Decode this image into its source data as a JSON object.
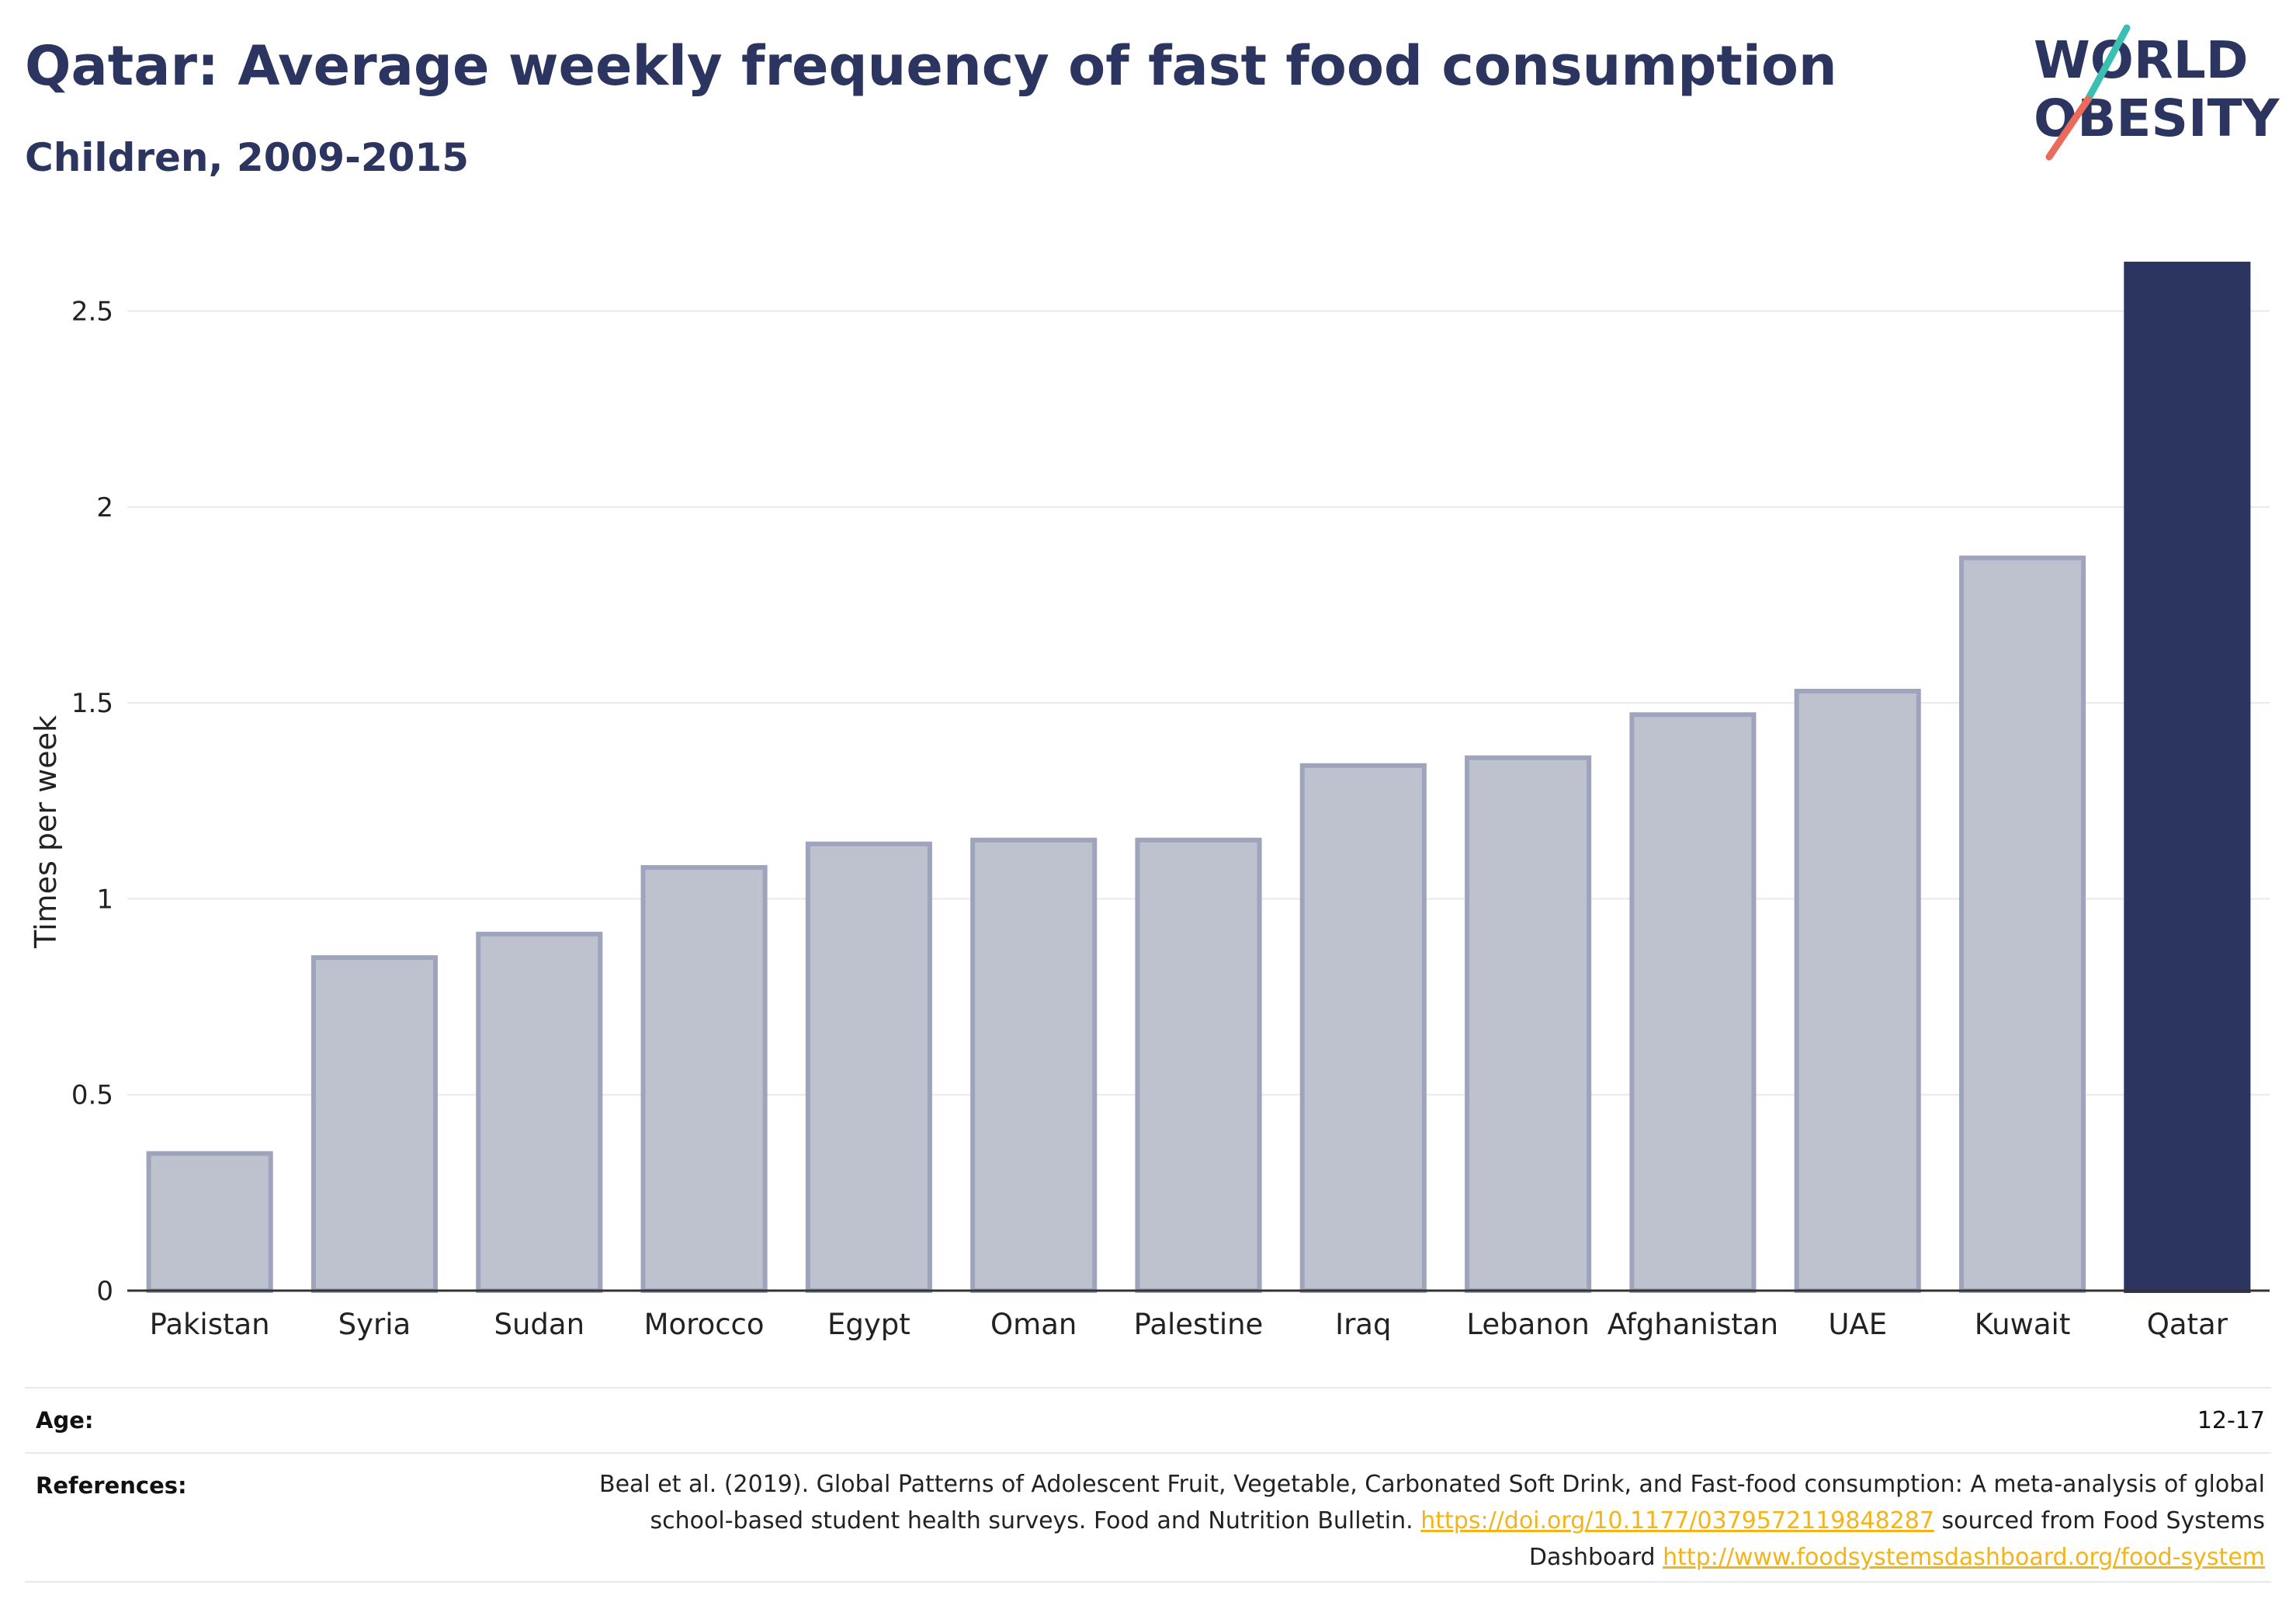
{
  "header": {
    "title": "Qatar: Average weekly frequency of fast food consumption",
    "subtitle": "Children, 2009-2015"
  },
  "logo": {
    "line1": "WORLD",
    "line2": "OBESITY"
  },
  "colors": {
    "title": "#2b3560",
    "highlight_bar": "#2b3560",
    "muted_bar": "#bec2ce",
    "muted_bar_border": "#9ea4bb",
    "link": "#f2b418",
    "logo_teal": "#3bbfb2",
    "logo_coral": "#ea6a5b"
  },
  "chart_data": {
    "type": "bar",
    "categories": [
      "Pakistan",
      "Syria",
      "Sudan",
      "Morocco",
      "Egypt",
      "Oman",
      "Palestine",
      "Iraq",
      "Lebanon",
      "Afghanistan",
      "UAE",
      "Kuwait",
      "Qatar"
    ],
    "values": [
      0.35,
      0.85,
      0.91,
      1.08,
      1.14,
      1.15,
      1.15,
      1.34,
      1.36,
      1.47,
      1.53,
      1.87,
      2.62
    ],
    "highlight": "Qatar",
    "ylabel": "Times per week",
    "xlabel": "",
    "ylim": [
      0,
      2.62
    ],
    "yticks": [
      0,
      0.5,
      1,
      1.5,
      2,
      2.5
    ],
    "ytick_labels": [
      "0",
      "0.5",
      "1",
      "1.5",
      "2",
      "2.5"
    ],
    "grid": true
  },
  "footer": {
    "age_label": "Age:",
    "age_value": "12-17",
    "references_label": "References:",
    "ref_text_1": "Beal et al. (2019). Global Patterns of Adolescent Fruit, Vegetable, Carbonated Soft Drink, and Fast-food consumption: A meta-analysis of global school-based student health surveys. Food and Nutrition Bulletin.",
    "ref_link_1": "https://doi.org/10.1177/0379572119848287",
    "ref_text_2": "sourced from Food Systems Dashboard",
    "ref_link_2": "http://www.foodsystemsdashboard.org/food-system"
  }
}
